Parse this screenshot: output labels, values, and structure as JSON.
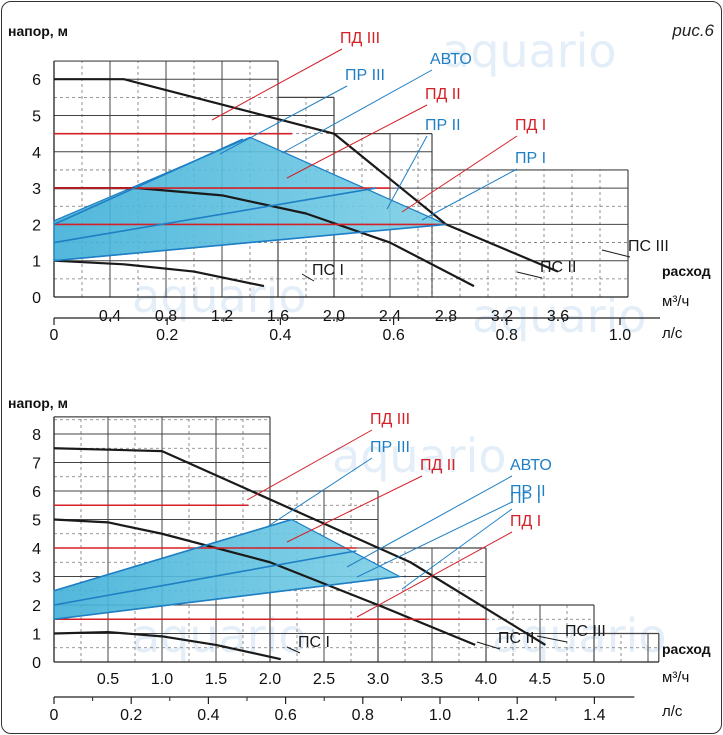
{
  "figure_label": "рис.6",
  "watermark": "aquario",
  "colors": {
    "pd": "#d42027",
    "pr": "#1f7fc4",
    "avto_fill": "#7ccfe6",
    "avto_fill2": "#3fb0d8",
    "ps": "#1a1a1a",
    "grid_dash": "#777777",
    "grid_solid": "#444444"
  },
  "chart_data": [
    {
      "type": "line",
      "ylabel": "напор, м",
      "xlabel_top": "расход",
      "x_unit_m3h": "м³/ч",
      "x_unit_ls": "л/с",
      "xlim": [
        0,
        4.1
      ],
      "ylim": [
        0,
        6.5
      ],
      "x_ticks_m3h": [
        "0.4",
        "0.8",
        "1.2",
        "1.6",
        "2.0",
        "2.4",
        "2.8",
        "3.2",
        "3.6"
      ],
      "x_ticks_ls": [
        "0",
        "0.2",
        "0.4",
        "0.6",
        "0.8",
        "1.0"
      ],
      "y_ticks": [
        "0",
        "1",
        "2",
        "3",
        "4",
        "5",
        "6"
      ],
      "series": [
        {
          "name": "ПС I",
          "kind": "ps",
          "points": [
            [
              0,
              1.0
            ],
            [
              0.5,
              0.9
            ],
            [
              1.0,
              0.7
            ],
            [
              1.5,
              0.3
            ]
          ]
        },
        {
          "name": "ПС II",
          "kind": "ps",
          "points": [
            [
              0,
              3.0
            ],
            [
              0.6,
              3.0
            ],
            [
              1.2,
              2.8
            ],
            [
              1.8,
              2.3
            ],
            [
              2.4,
              1.5
            ],
            [
              3.0,
              0.3
            ]
          ]
        },
        {
          "name": "ПС III",
          "kind": "ps",
          "points": [
            [
              0,
              6.0
            ],
            [
              0.5,
              6.0
            ],
            [
              2.0,
              4.5
            ],
            [
              2.8,
              2.0
            ],
            [
              3.6,
              0.7
            ]
          ]
        },
        {
          "name": "ПД I",
          "kind": "pd",
          "points": [
            [
              0,
              2.0
            ],
            [
              2.8,
              2.0
            ]
          ]
        },
        {
          "name": "ПД II",
          "kind": "pd",
          "points": [
            [
              0,
              3.0
            ],
            [
              2.4,
              3.0
            ]
          ]
        },
        {
          "name": "ПД III",
          "kind": "pd",
          "points": [
            [
              0,
              4.5
            ],
            [
              1.7,
              4.5
            ]
          ]
        },
        {
          "name": "ПР I",
          "kind": "pr",
          "points": [
            [
              0,
              1.0
            ],
            [
              2.8,
              2.0
            ]
          ]
        },
        {
          "name": "ПР II",
          "kind": "pr",
          "points": [
            [
              0,
              1.5
            ],
            [
              2.3,
              3.0
            ]
          ]
        },
        {
          "name": "ПР III",
          "kind": "pr",
          "points": [
            [
              0,
              2.0
            ],
            [
              1.35,
              4.35
            ]
          ]
        },
        {
          "name": "АВТО",
          "kind": "avto",
          "points": [
            [
              0,
              1.0
            ],
            [
              0,
              2.1
            ],
            [
              1.4,
              4.4
            ],
            [
              2.8,
              2.0
            ]
          ]
        }
      ],
      "labels_on_chart": [
        "ПД III",
        "ПР III",
        "АВТО",
        "ПД II",
        "ПР II",
        "ПД I",
        "ПР I",
        "ПС III",
        "ПС II",
        "ПС I"
      ]
    },
    {
      "type": "line",
      "ylabel": "напор, м",
      "xlabel_top": "расход",
      "x_unit_m3h": "м³/ч",
      "x_unit_ls": "л/с",
      "xlim": [
        0,
        5.6
      ],
      "ylim": [
        0,
        8.6
      ],
      "x_ticks_m3h": [
        "0.5",
        "1.0",
        "1.5",
        "2.0",
        "2.5",
        "3.0",
        "3.5",
        "4.0",
        "4.5",
        "5.0"
      ],
      "x_ticks_ls": [
        "0",
        "0.2",
        "0.4",
        "0.6",
        "0.8",
        "1.0",
        "1.2",
        "1.4"
      ],
      "y_ticks": [
        "0",
        "1",
        "2",
        "3",
        "4",
        "5",
        "6",
        "7",
        "8"
      ],
      "series": [
        {
          "name": "ПС I",
          "kind": "ps",
          "points": [
            [
              0,
              1.0
            ],
            [
              0.5,
              1.05
            ],
            [
              1.0,
              0.9
            ],
            [
              1.5,
              0.6
            ],
            [
              2.1,
              0.1
            ]
          ]
        },
        {
          "name": "ПС II",
          "kind": "ps",
          "points": [
            [
              0,
              5.0
            ],
            [
              0.5,
              4.9
            ],
            [
              1.0,
              4.5
            ],
            [
              2.0,
              3.5
            ],
            [
              3.0,
              2.0
            ],
            [
              3.9,
              0.6
            ]
          ]
        },
        {
          "name": "ПС III",
          "kind": "ps",
          "points": [
            [
              0,
              7.5
            ],
            [
              1.0,
              7.4
            ],
            [
              3.3,
              3.5
            ],
            [
              4.55,
              0.6
            ]
          ]
        },
        {
          "name": "ПД I",
          "kind": "pd",
          "points": [
            [
              0,
              1.5
            ],
            [
              4.0,
              1.5
            ]
          ]
        },
        {
          "name": "ПД II",
          "kind": "pd",
          "points": [
            [
              0,
              4.0
            ],
            [
              2.8,
              4.0
            ]
          ]
        },
        {
          "name": "ПД III",
          "kind": "pd",
          "points": [
            [
              0,
              5.5
            ],
            [
              1.8,
              5.5
            ]
          ]
        },
        {
          "name": "ПР I",
          "kind": "pr",
          "points": [
            [
              0,
              1.5
            ],
            [
              3.2,
              3.0
            ]
          ]
        },
        {
          "name": "ПР II",
          "kind": "pr",
          "points": [
            [
              0,
              2.0
            ],
            [
              2.8,
              3.9
            ]
          ]
        },
        {
          "name": "ПР III",
          "kind": "pr",
          "points": [
            [
              0,
              2.5
            ],
            [
              2.2,
              5.0
            ]
          ]
        },
        {
          "name": "АВТО",
          "kind": "avto",
          "points": [
            [
              0,
              1.5
            ],
            [
              0,
              2.5
            ],
            [
              2.2,
              5.0
            ],
            [
              3.2,
              3.0
            ]
          ]
        }
      ],
      "labels_on_chart": [
        "ПД III",
        "ПР III",
        "ПД II",
        "АВТО",
        "ПР II",
        "ПР I",
        "ПД I",
        "ПС III",
        "ПС II",
        "ПС I"
      ]
    }
  ]
}
